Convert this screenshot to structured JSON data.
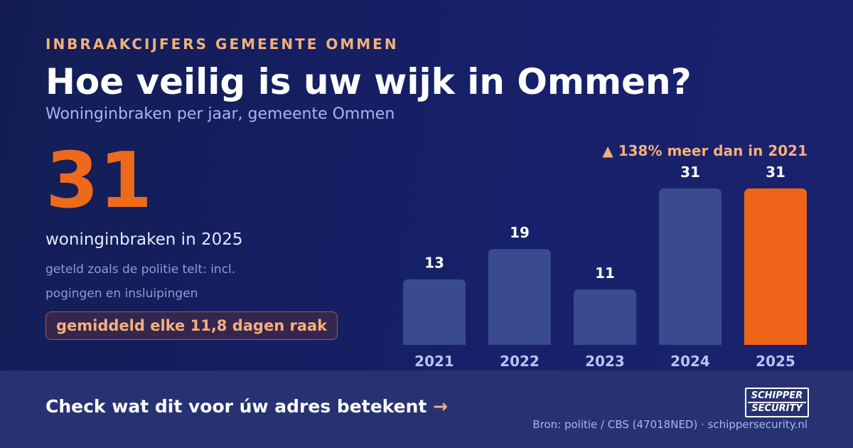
{
  "eyebrow": "INBRAAKCIJFERS GEMEENTE OMMEN",
  "title": "Hoe veilig is uw wijk in Ommen?",
  "subtitle": "Woninginbraken per jaar, gemeente Ommen",
  "highlight": {
    "number": "31",
    "caption": "woninginbraken in 2025",
    "note": "geteld zoals de politie telt: incl. pogingen en insluipingen",
    "pill": "gemiddeld elke 11,8 dagen raak"
  },
  "cta": {
    "text": "Check wat dit voor úw adres betekent",
    "arrow": "→"
  },
  "logo": {
    "line1": "SCHIPPER",
    "line2": "SECURITY"
  },
  "source": "Bron: politie / CBS (47018NED) · schippersecurity.nl",
  "colors": {
    "bar": "#3a4a8f",
    "highlight_bar": "#ee6418",
    "accent_text": "#f3b07a"
  },
  "chart_data": {
    "type": "bar",
    "categories": [
      "2021",
      "2022",
      "2023",
      "2024",
      "2025"
    ],
    "values": [
      13,
      19,
      11,
      31,
      31
    ],
    "highlight_index": 4,
    "annotation": "▲ 138% meer dan in 2021",
    "ylim": [
      0,
      31
    ]
  }
}
